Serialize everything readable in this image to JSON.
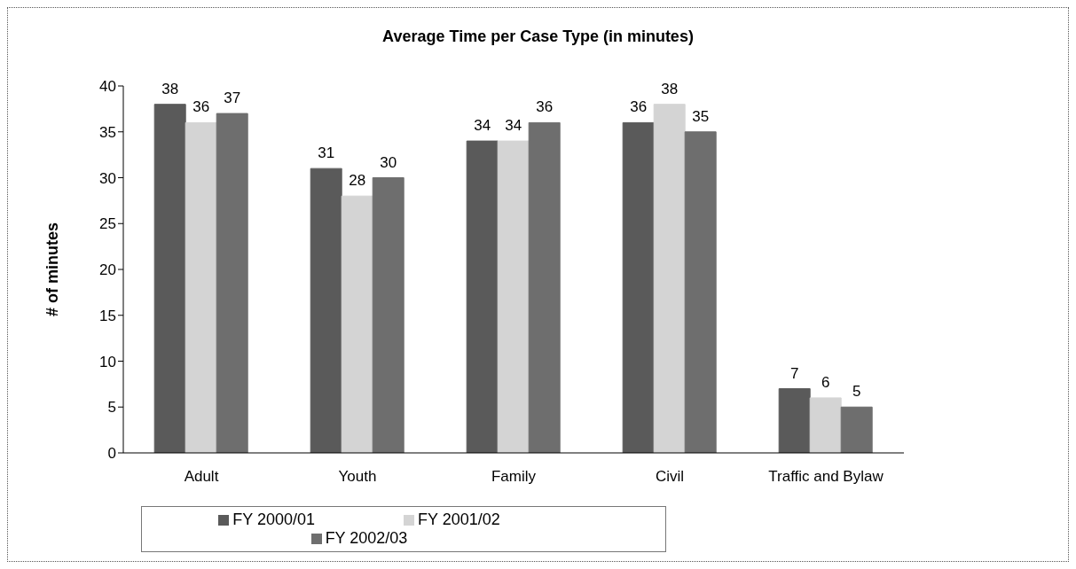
{
  "chart_data": {
    "type": "bar",
    "title": "Average Time per Case Type (in minutes)",
    "ylabel": "# of minutes",
    "categories": [
      "Adult",
      "Youth",
      "Family",
      "Civil",
      "Traffic and Bylaw"
    ],
    "series": [
      {
        "name": "FY 2000/01",
        "color": "#5a5a5a",
        "values": [
          38,
          31,
          34,
          36,
          7
        ]
      },
      {
        "name": "FY 2001/02",
        "color": "#d4d4d4",
        "values": [
          36,
          28,
          34,
          38,
          6
        ]
      },
      {
        "name": "FY 2002/03",
        "color": "#6e6e6e",
        "values": [
          37,
          30,
          36,
          35,
          5
        ]
      }
    ],
    "ylim": [
      0,
      40
    ],
    "yticks": [
      0,
      5,
      10,
      15,
      20,
      25,
      30,
      35,
      40
    ],
    "grid": false,
    "legend": "bottom",
    "data_labels": true
  }
}
